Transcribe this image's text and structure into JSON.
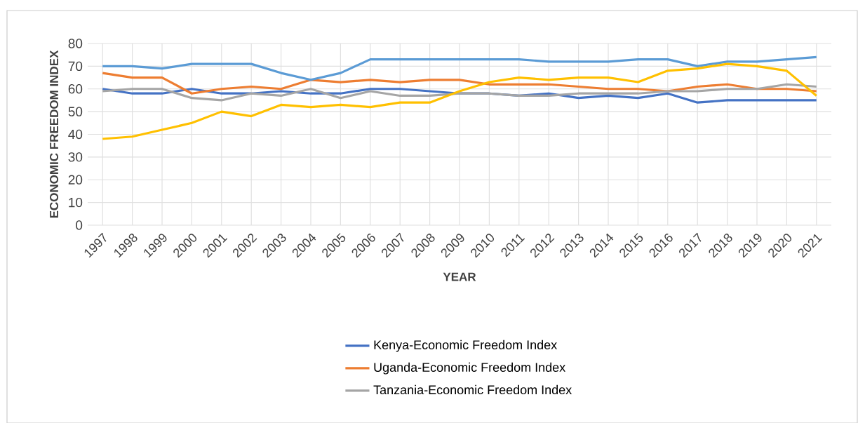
{
  "chart_data": {
    "type": "line",
    "xlabel": "YEAR",
    "ylabel": "ECONOMIC FREEDOM INDEX",
    "categories": [
      "1997",
      "1998",
      "1999",
      "2000",
      "2001",
      "2002",
      "2003",
      "2004",
      "2005",
      "2006",
      "2007",
      "2008",
      "2009",
      "2010",
      "2011",
      "2012",
      "2013",
      "2014",
      "2015",
      "2016",
      "2017",
      "2018",
      "2019",
      "2020",
      "2021"
    ],
    "series": [
      {
        "name": "Kenya-Economic Freedom Index",
        "color": "#4472c4",
        "values": [
          60,
          58,
          58,
          60,
          58,
          58,
          59,
          58,
          58,
          60,
          60,
          59,
          58,
          58,
          57,
          58,
          56,
          57,
          56,
          58,
          54,
          55,
          55,
          55,
          55
        ]
      },
      {
        "name": "Uganda-Economic Freedom Index",
        "color": "#ed7d31",
        "values": [
          67,
          65,
          65,
          58,
          60,
          61,
          60,
          64,
          63,
          64,
          63,
          64,
          64,
          62,
          62,
          62,
          61,
          60,
          60,
          59,
          61,
          62,
          60,
          60,
          59
        ]
      },
      {
        "name": "Tanzania-Economic Freedom Index",
        "color": "#a5a5a5",
        "values": [
          59,
          60,
          60,
          56,
          55,
          58,
          57,
          60,
          56,
          59,
          57,
          57,
          58,
          58,
          57,
          57,
          58,
          58,
          58,
          59,
          59,
          60,
          60,
          62,
          61
        ]
      },
      {
        "color": "#5b9bd5",
        "values": [
          70,
          70,
          69,
          71,
          71,
          71,
          67,
          64,
          67,
          73,
          73,
          73,
          73,
          73,
          73,
          72,
          72,
          72,
          73,
          73,
          70,
          72,
          72,
          73,
          74
        ]
      },
      {
        "color": "#ffc000",
        "values": [
          38,
          39,
          42,
          45,
          50,
          48,
          53,
          52,
          53,
          52,
          54,
          54,
          59,
          63,
          65,
          64,
          65,
          65,
          63,
          68,
          69,
          71,
          70,
          68,
          57
        ]
      }
    ],
    "ylim": [
      0,
      80
    ],
    "yticks": [
      0,
      10,
      20,
      30,
      40,
      50,
      60,
      70,
      80
    ],
    "grid": true,
    "legend": "bottom",
    "marker": "none",
    "line_style": "solid"
  }
}
